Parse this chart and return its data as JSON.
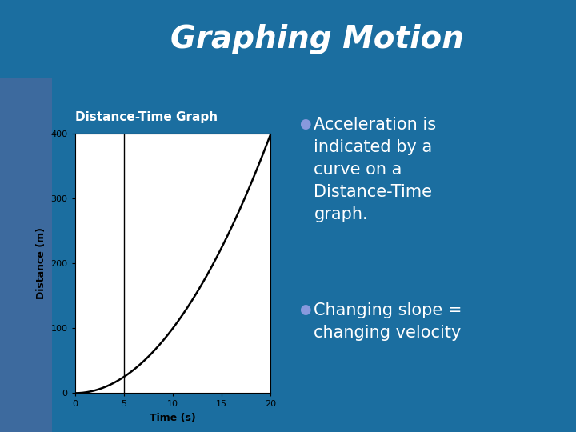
{
  "title": "Graphing Motion",
  "title_fontsize": 28,
  "title_color": "#FFFFFF",
  "title_bg_color": "#1B6EA0",
  "slide_bg_color": "#1B6EA0",
  "left_panel_bg": "#4A7AB5",
  "subtitle": "Distance-Time Graph",
  "subtitle_fontsize": 11,
  "subtitle_color": "#FFFFFF",
  "xlabel": "Time (s)",
  "ylabel": "Distance (m)",
  "xlim": [
    0,
    20
  ],
  "ylim": [
    0,
    400
  ],
  "xticks": [
    0,
    5,
    10,
    15,
    20
  ],
  "yticks": [
    0,
    100,
    200,
    300,
    400
  ],
  "curve_color": "#000000",
  "vline_x": 5,
  "vline_color": "#000000",
  "bullet1_line1": "Acceleration is",
  "bullet1_line2": "indicated by a",
  "bullet1_line3": "curve on a",
  "bullet1_line4": "Distance-Time",
  "bullet1_line5": "graph.",
  "bullet2_line1": "Changing slope =",
  "bullet2_line2": "changing velocity",
  "bullet_color": "#FFFFFF",
  "bullet_dot_color": "#8899DD",
  "bullet_fontsize": 15,
  "graph_bg": "#FFFFFF",
  "header_stripe_color": "#4A8EC4",
  "header_darker": "#155A8A"
}
